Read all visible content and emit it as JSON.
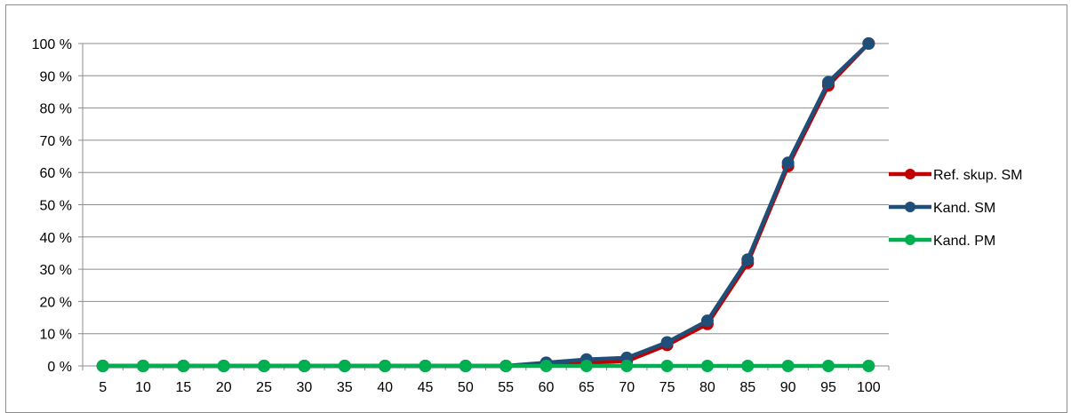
{
  "chart_data": {
    "type": "line",
    "categories": [
      "5",
      "10",
      "15",
      "20",
      "25",
      "30",
      "35",
      "40",
      "45",
      "50",
      "55",
      "60",
      "65",
      "70",
      "75",
      "80",
      "85",
      "90",
      "95",
      "100"
    ],
    "y_ticks": [
      "0 %",
      "10 %",
      "20 %",
      "30 %",
      "40 %",
      "50 %",
      "60 %",
      "70 %",
      "80 %",
      "90 %",
      "100 %"
    ],
    "ylim": [
      0,
      100
    ],
    "grid": true,
    "legend_position": "right",
    "series": [
      {
        "name": "Ref. skup. SM",
        "color": "#c00000",
        "values": [
          0,
          0,
          0,
          0,
          0,
          0,
          0,
          0,
          0,
          0,
          0,
          0.3,
          1,
          1.5,
          6.5,
          13,
          32,
          62,
          87,
          100
        ]
      },
      {
        "name": "Kand. SM",
        "color": "#1f4e79",
        "values": [
          0,
          0,
          0,
          0,
          0,
          0,
          0,
          0,
          0,
          0,
          0,
          1,
          2,
          2.5,
          7.3,
          14,
          33,
          63,
          88,
          100
        ]
      },
      {
        "name": "Kand. PM",
        "color": "#00b050",
        "values": [
          0,
          0,
          0,
          0,
          0,
          0,
          0,
          0,
          0,
          0,
          0,
          0,
          0,
          0,
          0,
          0,
          0,
          0,
          0,
          0
        ]
      }
    ]
  }
}
